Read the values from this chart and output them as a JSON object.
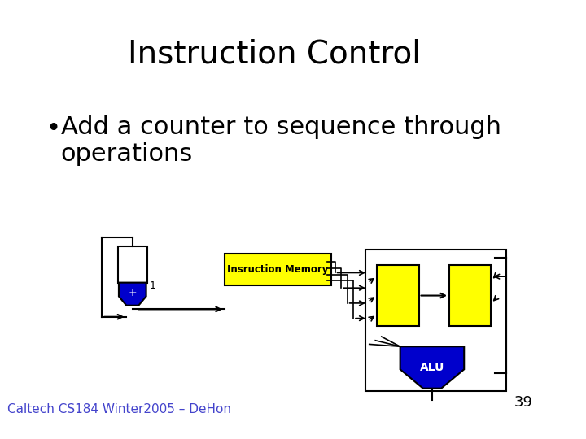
{
  "title": "Instruction Control",
  "bullet": "Add a counter to sequence through operations",
  "footer": "Caltech CS184 Winter2005 – DeHon",
  "page_number": "39",
  "bg_color": "#ffffff",
  "title_fontsize": 28,
  "bullet_fontsize": 22,
  "footer_fontsize": 11,
  "yellow": "#ffff00",
  "blue": "#0000cc",
  "black": "#000000",
  "white": "#ffffff"
}
